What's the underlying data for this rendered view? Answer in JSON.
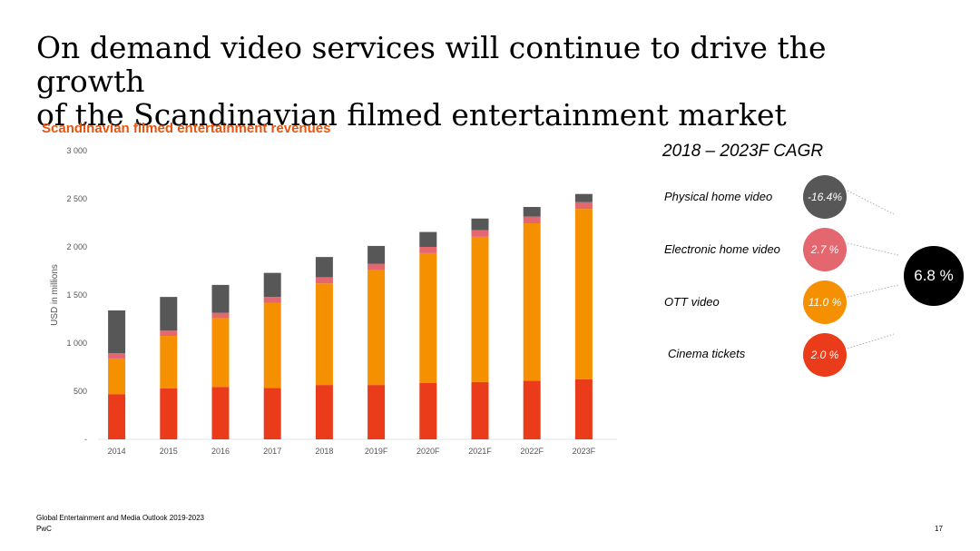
{
  "slide": {
    "title_line1": "On demand video services will continue to drive the growth",
    "title_line2": "of the Scandinavian filmed entertainment market",
    "source": "Global Entertainment and Media Outlook 2019-2023",
    "company": "PwC",
    "page_number": "17"
  },
  "cagr": {
    "title": "2018 – 2023F CAGR",
    "items": [
      {
        "label": "Physical home video",
        "value": "-16.4%",
        "color": "#575757"
      },
      {
        "label": "Electronic home video",
        "value": "2.7 %",
        "color": "#e4666f"
      },
      {
        "label": "OTT video",
        "value": "11.0 %",
        "color": "#f59100"
      },
      {
        "label": "Cinema tickets",
        "value": "2.0 %",
        "color": "#ea3c1a"
      }
    ],
    "total": {
      "value": "6.8 %",
      "color": "#000000"
    }
  },
  "chart_data": {
    "type": "bar",
    "stacked": true,
    "title": "Scandinavian filmed entertainment revenues",
    "ylabel": "USD in millions",
    "xlabel": "",
    "ylim": [
      0,
      3000
    ],
    "y_ticks": [
      "-",
      "500",
      "1 000",
      "1 500",
      "2 000",
      "2 500",
      "3 000"
    ],
    "categories": [
      "2014",
      "2015",
      "2016",
      "2017",
      "2018",
      "2019F",
      "2020F",
      "2021F",
      "2022F",
      "2023F"
    ],
    "series": [
      {
        "key": "cinema",
        "color": "#ea3c1a",
        "values": [
          470,
          530,
          545,
          535,
          565,
          565,
          585,
          595,
          610,
          625
        ]
      },
      {
        "key": "ott",
        "color": "#f59100",
        "values": [
          370,
          545,
          715,
          885,
          1055,
          1195,
          1350,
          1510,
          1635,
          1770
        ]
      },
      {
        "key": "electronic",
        "color": "#e4666f",
        "values": [
          55,
          55,
          55,
          60,
          65,
          65,
          65,
          70,
          70,
          70
        ]
      },
      {
        "key": "physical",
        "color": "#575757",
        "values": [
          445,
          350,
          290,
          250,
          210,
          185,
          155,
          120,
          100,
          85
        ]
      }
    ],
    "grid": false
  }
}
